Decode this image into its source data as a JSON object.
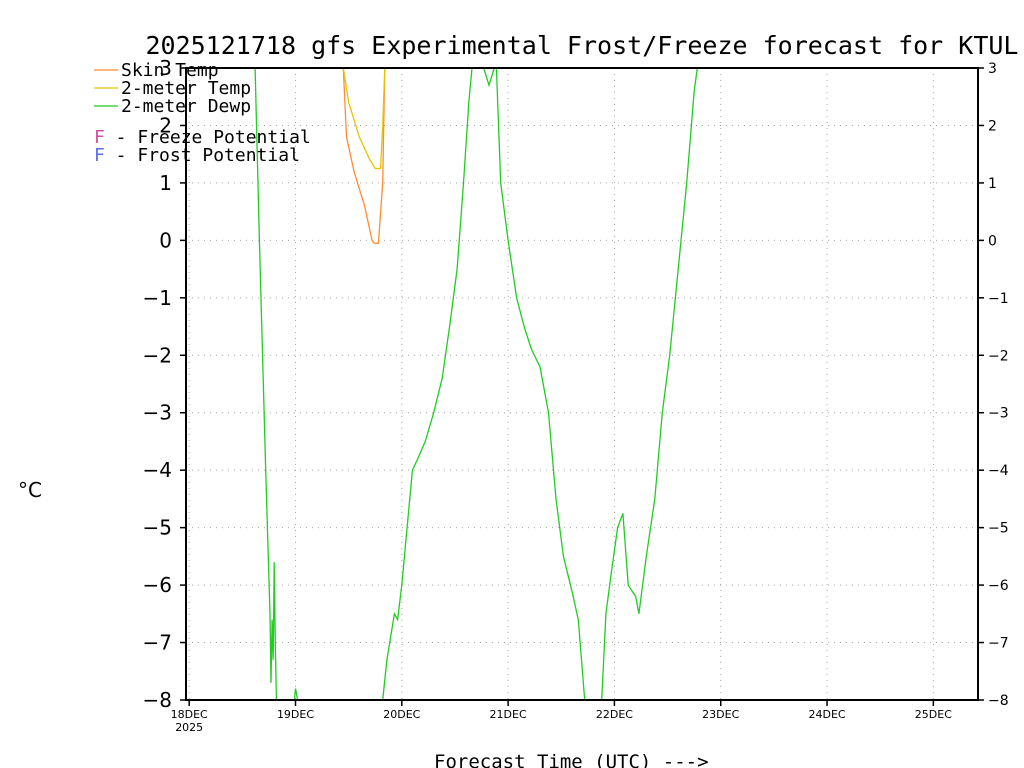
{
  "chart_data": {
    "type": "line",
    "title": "2025121718 gfs Experimental Frost/Freeze forecast for KTUL",
    "xlabel": "Forecast Time (UTC) --->",
    "ylabel": "°C",
    "ylim": [
      -8,
      3
    ],
    "xlim": [
      -0.03,
      7.42
    ],
    "grid": true,
    "x_unit": "days since 18DEC 00Z",
    "y_ticks": [
      3,
      2,
      1,
      0,
      -1,
      -2,
      -3,
      -4,
      -5,
      -6,
      -7,
      -8
    ],
    "y_tick_labels": [
      "3",
      "2",
      "1",
      "0",
      "−1",
      "−2",
      "−3",
      "−4",
      "−5",
      "−6",
      "−7",
      "−8"
    ],
    "x_ticks": [
      {
        "x": 0,
        "label": "18DEC",
        "sublabel": "2025"
      },
      {
        "x": 1,
        "label": "19DEC",
        "sublabel": ""
      },
      {
        "x": 2,
        "label": "20DEC",
        "sublabel": ""
      },
      {
        "x": 3,
        "label": "21DEC",
        "sublabel": ""
      },
      {
        "x": 4,
        "label": "22DEC",
        "sublabel": ""
      },
      {
        "x": 5,
        "label": "23DEC",
        "sublabel": ""
      },
      {
        "x": 6,
        "label": "24DEC",
        "sublabel": ""
      },
      {
        "x": 7,
        "label": "25DEC",
        "sublabel": ""
      }
    ],
    "legend": [
      {
        "label": "Skin Temp",
        "color": "#ff8c33"
      },
      {
        "label": "2-meter Temp",
        "color": "#e8c400"
      },
      {
        "label": "2-meter Dewp",
        "color": "#22cc22"
      }
    ],
    "potential_legend": [
      {
        "letter": "F",
        "text": " - Freeze Potential",
        "color": "#d050a0"
      },
      {
        "letter": "F",
        "text": " - Frost Potential",
        "color": "#5a6cf0"
      }
    ],
    "series": [
      {
        "name": "Skin Temp",
        "color": "#ff8c33",
        "points": [
          [
            1.45,
            3.0
          ],
          [
            1.48,
            1.8
          ],
          [
            1.55,
            1.2
          ],
          [
            1.65,
            0.6
          ],
          [
            1.72,
            0.0
          ],
          [
            1.74,
            -0.05
          ],
          [
            1.78,
            -0.05
          ],
          [
            1.82,
            1.0
          ],
          [
            1.83,
            2.0
          ],
          [
            1.84,
            3.0
          ]
        ]
      },
      {
        "name": "2-meter Temp",
        "color": "#e8c400",
        "points": [
          [
            1.45,
            3.0
          ],
          [
            1.5,
            2.4
          ],
          [
            1.6,
            1.8
          ],
          [
            1.7,
            1.4
          ],
          [
            1.75,
            1.25
          ],
          [
            1.8,
            1.25
          ],
          [
            1.82,
            2.0
          ],
          [
            1.84,
            3.0
          ]
        ]
      },
      {
        "name": "2-meter Dewp",
        "color": "#22cc22",
        "points": [
          [
            0.62,
            3.0
          ],
          [
            0.66,
            0.0
          ],
          [
            0.72,
            -4.0
          ],
          [
            0.76,
            -6.5
          ],
          [
            0.77,
            -7.7
          ],
          [
            0.78,
            -6.6
          ],
          [
            0.79,
            -7.3
          ],
          [
            0.8,
            -5.6
          ],
          [
            0.81,
            -7.0
          ],
          [
            0.82,
            -8.0
          ]
        ]
      },
      {
        "name": "2-meter Dewp",
        "color": "#22cc22",
        "points": [
          [
            0.99,
            -8.0
          ],
          [
            1.0,
            -7.8
          ],
          [
            1.02,
            -8.0
          ]
        ]
      },
      {
        "name": "2-meter Dewp",
        "color": "#22cc22",
        "points": [
          [
            1.82,
            -8.0
          ],
          [
            1.86,
            -7.3
          ],
          [
            1.93,
            -6.5
          ],
          [
            1.96,
            -6.6
          ],
          [
            2.0,
            -6.0
          ],
          [
            2.05,
            -5.0
          ],
          [
            2.1,
            -4.0
          ],
          [
            2.15,
            -3.8
          ],
          [
            2.22,
            -3.5
          ],
          [
            2.3,
            -3.0
          ],
          [
            2.38,
            -2.4
          ],
          [
            2.45,
            -1.5
          ],
          [
            2.52,
            -0.5
          ],
          [
            2.58,
            1.0
          ],
          [
            2.63,
            2.4
          ],
          [
            2.66,
            3.0
          ]
        ]
      },
      {
        "name": "2-meter Dewp",
        "color": "#22cc22",
        "points": [
          [
            2.77,
            3.0
          ],
          [
            2.82,
            2.7
          ],
          [
            2.87,
            3.0
          ]
        ]
      },
      {
        "name": "2-meter Dewp",
        "color": "#22cc22",
        "points": [
          [
            2.89,
            3.0
          ],
          [
            2.93,
            1.0
          ],
          [
            3.0,
            0.0
          ],
          [
            3.08,
            -1.0
          ],
          [
            3.15,
            -1.5
          ],
          [
            3.22,
            -1.9
          ],
          [
            3.3,
            -2.2
          ],
          [
            3.38,
            -3.0
          ],
          [
            3.45,
            -4.5
          ],
          [
            3.52,
            -5.5
          ],
          [
            3.6,
            -6.1
          ],
          [
            3.66,
            -6.6
          ],
          [
            3.72,
            -8.0
          ]
        ]
      },
      {
        "name": "2-meter Dewp",
        "color": "#22cc22",
        "points": [
          [
            3.88,
            -8.0
          ],
          [
            3.92,
            -6.5
          ],
          [
            3.97,
            -5.8
          ],
          [
            4.03,
            -5.0
          ],
          [
            4.08,
            -4.75
          ],
          [
            4.13,
            -6.0
          ],
          [
            4.2,
            -6.2
          ],
          [
            4.23,
            -6.5
          ],
          [
            4.3,
            -5.5
          ],
          [
            4.38,
            -4.5
          ],
          [
            4.45,
            -3.0
          ],
          [
            4.52,
            -2.0
          ],
          [
            4.6,
            -0.5
          ],
          [
            4.68,
            1.0
          ],
          [
            4.75,
            2.6
          ],
          [
            4.78,
            3.0
          ]
        ]
      }
    ]
  }
}
